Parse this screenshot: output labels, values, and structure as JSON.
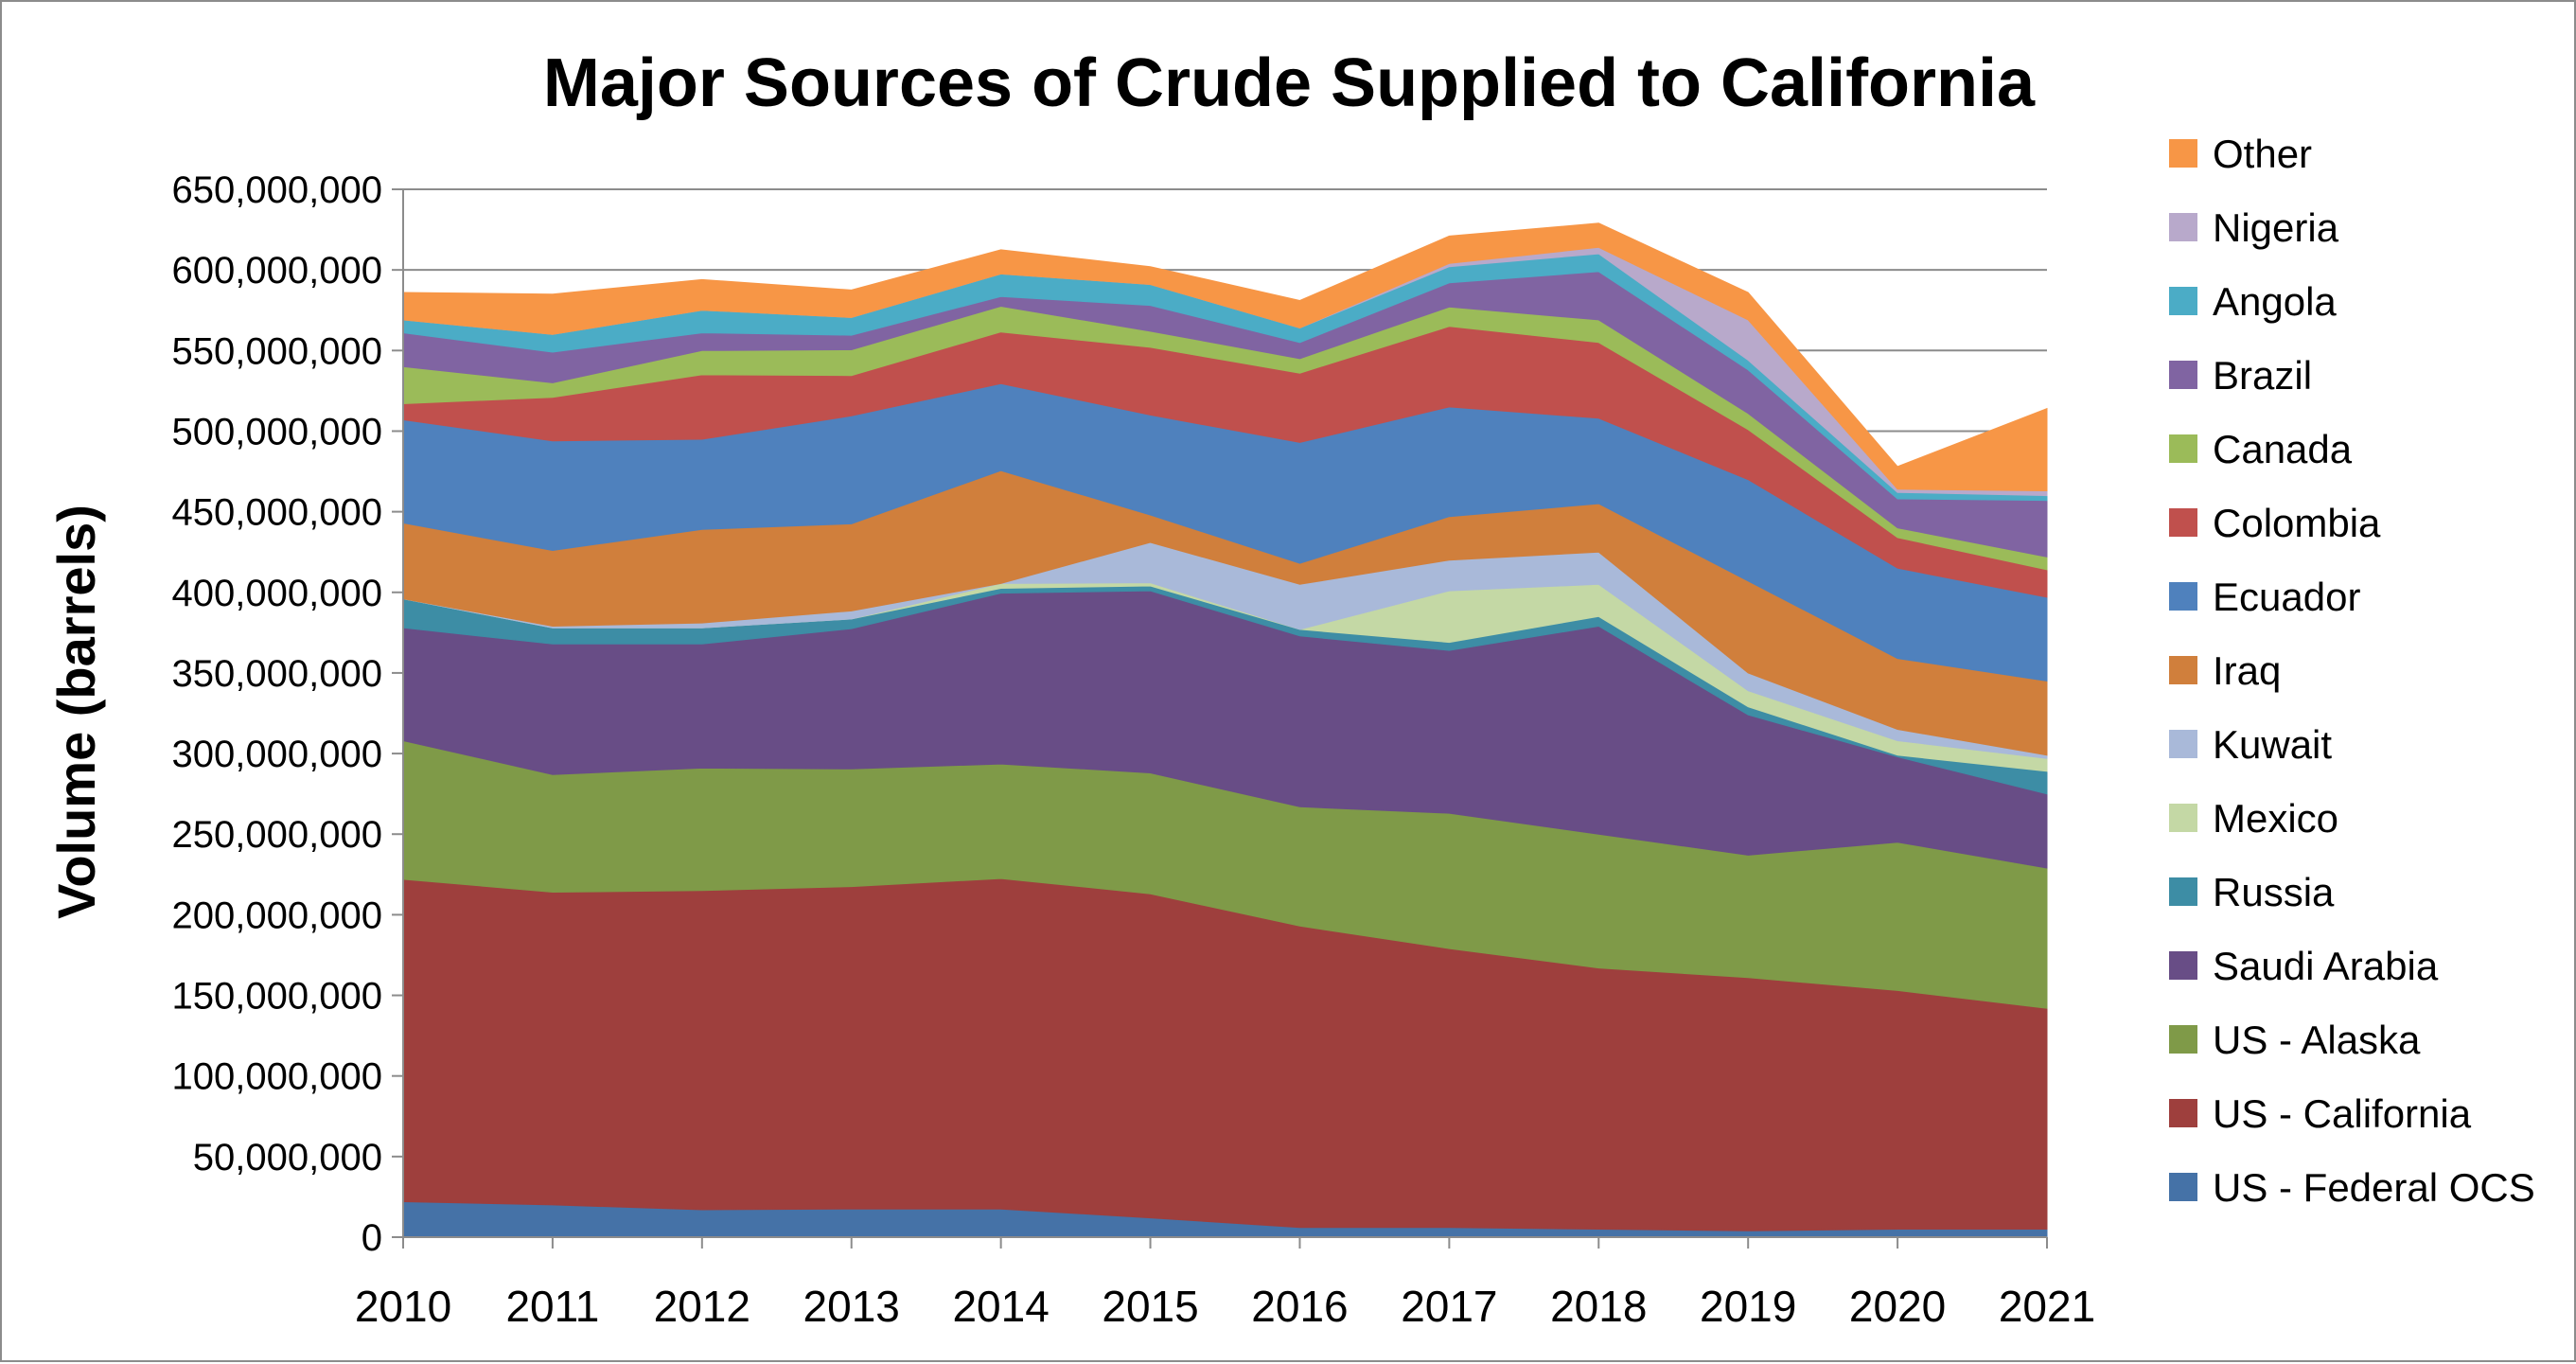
{
  "chart_data": {
    "type": "area",
    "stacked": true,
    "title": "Major Sources of Crude Supplied to California",
    "xlabel": "",
    "ylabel": "Volume (barrels)",
    "x": [
      "2010",
      "2011",
      "2012",
      "2013",
      "2014",
      "2015",
      "2016",
      "2017",
      "2018",
      "2019",
      "2020",
      "2021"
    ],
    "ylim": [
      0,
      650000000
    ],
    "y_ticks": [
      "0",
      "50,000,000",
      "100,000,000",
      "150,000,000",
      "200,000,000",
      "250,000,000",
      "300,000,000",
      "350,000,000",
      "400,000,000",
      "450,000,000",
      "500,000,000",
      "550,000,000",
      "600,000,000",
      "650,000,000"
    ],
    "grid": true,
    "legend_position": "right",
    "series": [
      {
        "name": "US - Federal OCS",
        "color": "#4572A7",
        "values": [
          22000000,
          20000000,
          17000000,
          17500000,
          17500000,
          12000000,
          6000000,
          6000000,
          5000000,
          4000000,
          5000000,
          5000000
        ]
      },
      {
        "name": "US - California",
        "color": "#9E3F3D",
        "values": [
          200000000,
          194000000,
          198000000,
          200000000,
          205000000,
          201000000,
          187000000,
          173000000,
          162000000,
          157000000,
          148000000,
          137000000
        ]
      },
      {
        "name": "US - Alaska",
        "color": "#7F9A48",
        "values": [
          86000000,
          73000000,
          76000000,
          73000000,
          71000000,
          75000000,
          74000000,
          84000000,
          83000000,
          76000000,
          92000000,
          87000000
        ]
      },
      {
        "name": "Saudi Arabia",
        "color": "#684D86",
        "values": [
          70000000,
          81000000,
          77000000,
          87000000,
          106000000,
          113000000,
          106000000,
          101000000,
          129000000,
          87000000,
          53000000,
          46000000
        ]
      },
      {
        "name": "Russia",
        "color": "#3D8DA5",
        "values": [
          18000000,
          10000000,
          10000000,
          6000000,
          3000000,
          3000000,
          4000000,
          5000000,
          6000000,
          5000000,
          1000000,
          14000000
        ]
      },
      {
        "name": "Mexico",
        "color": "#C4D8A5",
        "values": [
          0,
          0,
          0,
          0,
          3000000,
          2000000,
          0,
          32000000,
          20000000,
          10000000,
          9000000,
          8000000
        ]
      },
      {
        "name": "Kuwait",
        "color": "#A9B9D9",
        "values": [
          0,
          1000000,
          3000000,
          5000000,
          0,
          25000000,
          28000000,
          19000000,
          20000000,
          11000000,
          7000000,
          2000000
        ]
      },
      {
        "name": "Iraq",
        "color": "#D07F3C",
        "values": [
          47000000,
          47000000,
          58000000,
          54000000,
          70000000,
          17000000,
          13000000,
          27000000,
          30000000,
          57000000,
          44000000,
          46000000
        ]
      },
      {
        "name": "Ecuador",
        "color": "#4F81BD",
        "values": [
          64000000,
          68000000,
          56000000,
          67000000,
          54000000,
          62000000,
          75000000,
          68000000,
          53000000,
          63000000,
          56000000,
          52000000
        ]
      },
      {
        "name": "Colombia",
        "color": "#C0504D",
        "values": [
          10000000,
          27000000,
          40000000,
          25000000,
          32000000,
          42000000,
          43000000,
          50000000,
          47000000,
          31000000,
          19000000,
          17000000
        ]
      },
      {
        "name": "Canada",
        "color": "#9BBB59",
        "values": [
          23000000,
          9000000,
          15000000,
          16000000,
          16000000,
          10000000,
          9000000,
          12000000,
          14000000,
          10000000,
          6000000,
          8000000
        ]
      },
      {
        "name": "Brazil",
        "color": "#8064A2",
        "values": [
          21000000,
          19000000,
          11000000,
          9000000,
          6000000,
          16000000,
          10000000,
          15000000,
          30000000,
          27000000,
          18000000,
          35000000
        ]
      },
      {
        "name": "Angola",
        "color": "#4BACC6",
        "values": [
          8000000,
          11000000,
          14000000,
          11000000,
          14000000,
          13000000,
          9000000,
          10000000,
          11000000,
          6000000,
          4000000,
          3000000
        ]
      },
      {
        "name": "Nigeria",
        "color": "#B8A9CB",
        "values": [
          0,
          0,
          0,
          0,
          0,
          0,
          0,
          2000000,
          4000000,
          25000000,
          2000000,
          3000000
        ]
      },
      {
        "name": "Other",
        "color": "#F79646",
        "values": [
          17000000,
          25000000,
          19000000,
          17000000,
          15000000,
          11000000,
          17000000,
          17000000,
          15000000,
          17000000,
          14000000,
          51000000
        ]
      }
    ]
  }
}
